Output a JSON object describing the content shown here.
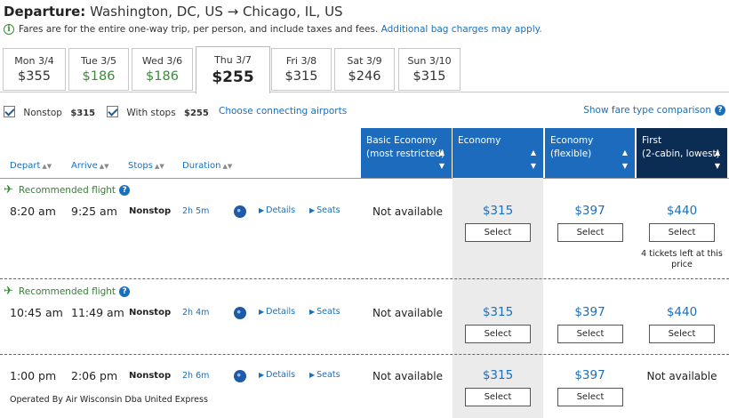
{
  "header": {
    "label": "Departure:",
    "route": "Washington, DC, US → Chicago, IL, US"
  },
  "info": {
    "text": "Fares are for the entire one-way trip, per person, and include taxes and fees.",
    "link": "Additional bag charges may apply."
  },
  "date_tabs": [
    {
      "label": "Mon 3/4",
      "price": "$355"
    },
    {
      "label": "Tue 3/5",
      "price": "$186"
    },
    {
      "label": "Wed 3/6",
      "price": "$186"
    },
    {
      "label": "Thu 3/7",
      "price": "$255"
    },
    {
      "label": "Fri 3/8",
      "price": "$315"
    },
    {
      "label": "Sat 3/9",
      "price": "$246"
    },
    {
      "label": "Sun 3/10",
      "price": "$315"
    }
  ],
  "colors": {
    "green_price": "#3c8b3c",
    "link_blue": "#1a6fbb",
    "header_blue": "#1c6bbd",
    "header_dark": "#0b2d53"
  },
  "filters": {
    "nonstop_label": "Nonstop",
    "nonstop_price": "$315",
    "with_stops_label": "With stops",
    "with_stops_price": "$255",
    "connecting_link": "Choose connecting airports",
    "compare_link": "Show fare type comparison"
  },
  "columns": {
    "depart": "Depart",
    "arrive": "Arrive",
    "stops": "Stops",
    "duration": "Duration"
  },
  "fare_types": [
    {
      "line1": "Basic Economy",
      "line2": "(most restricted)"
    },
    {
      "line1": "Economy",
      "line2": ""
    },
    {
      "line1": "Economy",
      "line2": "(flexible)"
    },
    {
      "line1": "First",
      "line2": "(2-cabin, lowest)"
    }
  ],
  "labels": {
    "recommended": "Recommended flight",
    "details": "Details",
    "seats": "Seats",
    "select": "Select",
    "not_available": "Not available"
  },
  "flights": [
    {
      "depart": "8:20 am",
      "arrive": "9:25 am",
      "stops": "Nonstop",
      "duration": "2h 5m",
      "basic": "Not available",
      "economy": "$315",
      "flexible": "$397",
      "first": "$440",
      "first_note": "4 tickets left at this price"
    },
    {
      "depart": "10:45 am",
      "arrive": "11:49 am",
      "stops": "Nonstop",
      "duration": "2h 4m",
      "basic": "Not available",
      "economy": "$315",
      "flexible": "$397",
      "first": "$440"
    },
    {
      "depart": "1:00 pm",
      "arrive": "2:06 pm",
      "stops": "Nonstop",
      "duration": "2h 6m",
      "basic": "Not available",
      "economy": "$315",
      "flexible": "$397",
      "first": "Not available",
      "operated_by": "Operated By Air Wisconsin Dba United Express"
    }
  ]
}
